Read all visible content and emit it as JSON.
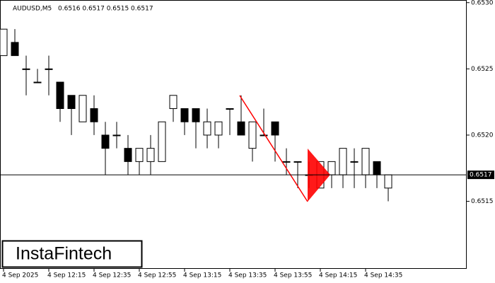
{
  "chart_data": {
    "type": "candlestick",
    "title": "AUDUSD,M5",
    "subtitle": "0.6516 0.6517 0.6515 0.6517",
    "categories": [
      "4 Sep 2025",
      null,
      null,
      null,
      "4 Sep 12:15",
      null,
      null,
      null,
      "4 Sep 12:35",
      null,
      null,
      null,
      "4 Sep 12:55",
      null,
      null,
      null,
      "4 Sep 13:15",
      null,
      null,
      null,
      "4 Sep 13:35",
      null,
      null,
      null,
      "4 Sep 13:55",
      null,
      null,
      null,
      "4 Sep 14:15",
      null,
      null,
      null,
      "4 Sep 14:35",
      null,
      null
    ],
    "open": [
      0.6526,
      0.6527,
      0.6525,
      0.6524,
      0.6525,
      0.6524,
      0.6523,
      0.6521,
      0.6522,
      0.652,
      0.652,
      0.6519,
      0.6518,
      0.6518,
      0.6518,
      0.6522,
      0.6522,
      0.6522,
      0.652,
      0.652,
      0.6522,
      0.6521,
      0.6519,
      0.652,
      0.6521,
      0.6518,
      0.6518,
      0.6517,
      0.6516,
      0.6517,
      0.6517,
      0.6518,
      0.6517,
      0.6518,
      0.6516
    ],
    "high": [
      0.6528,
      0.6528,
      0.6526,
      0.6525,
      0.6526,
      0.6524,
      0.6523,
      0.6523,
      0.6523,
      0.6521,
      0.6521,
      0.652,
      0.6519,
      0.652,
      0.6521,
      0.6523,
      0.6522,
      0.6522,
      0.6522,
      0.6521,
      0.6522,
      0.6523,
      0.6521,
      0.6522,
      0.6521,
      0.6519,
      0.6518,
      0.6518,
      0.6518,
      0.6518,
      0.6519,
      0.6519,
      0.6519,
      0.6518,
      0.6517
    ],
    "low": [
      0.6526,
      0.6526,
      0.6523,
      0.6524,
      0.6523,
      0.6521,
      0.652,
      0.6521,
      0.652,
      0.6517,
      0.6519,
      0.6517,
      0.6517,
      0.6517,
      0.6518,
      0.6521,
      0.652,
      0.6519,
      0.6519,
      0.6519,
      0.652,
      0.652,
      0.6518,
      0.652,
      0.6518,
      0.6517,
      0.6516,
      0.6516,
      0.6516,
      0.6516,
      0.6516,
      0.6516,
      0.6516,
      0.6516,
      0.6515
    ],
    "close": [
      0.6528,
      0.6526,
      0.6525,
      0.6524,
      0.6525,
      0.6522,
      0.6522,
      0.6523,
      0.6521,
      0.6519,
      0.652,
      0.6518,
      0.6519,
      0.6519,
      0.6521,
      0.6523,
      0.6521,
      0.6521,
      0.6521,
      0.6521,
      0.6522,
      0.652,
      0.6521,
      0.652,
      0.652,
      0.6518,
      0.6518,
      0.6517,
      0.6518,
      0.6518,
      0.6519,
      0.6518,
      0.6519,
      0.6517,
      0.6517
    ],
    "up_color": "#ffffff",
    "down_color": "#000000",
    "current_price": 0.6517,
    "ylim": [
      0.65099,
      0.65302
    ],
    "yticks": [
      0.6515,
      {
        "value": 0.652,
        "label": "0.6520"
      },
      0.6525,
      {
        "value": 0.653,
        "label": "0.6530"
      }
    ]
  },
  "logo": "InstaFintech"
}
